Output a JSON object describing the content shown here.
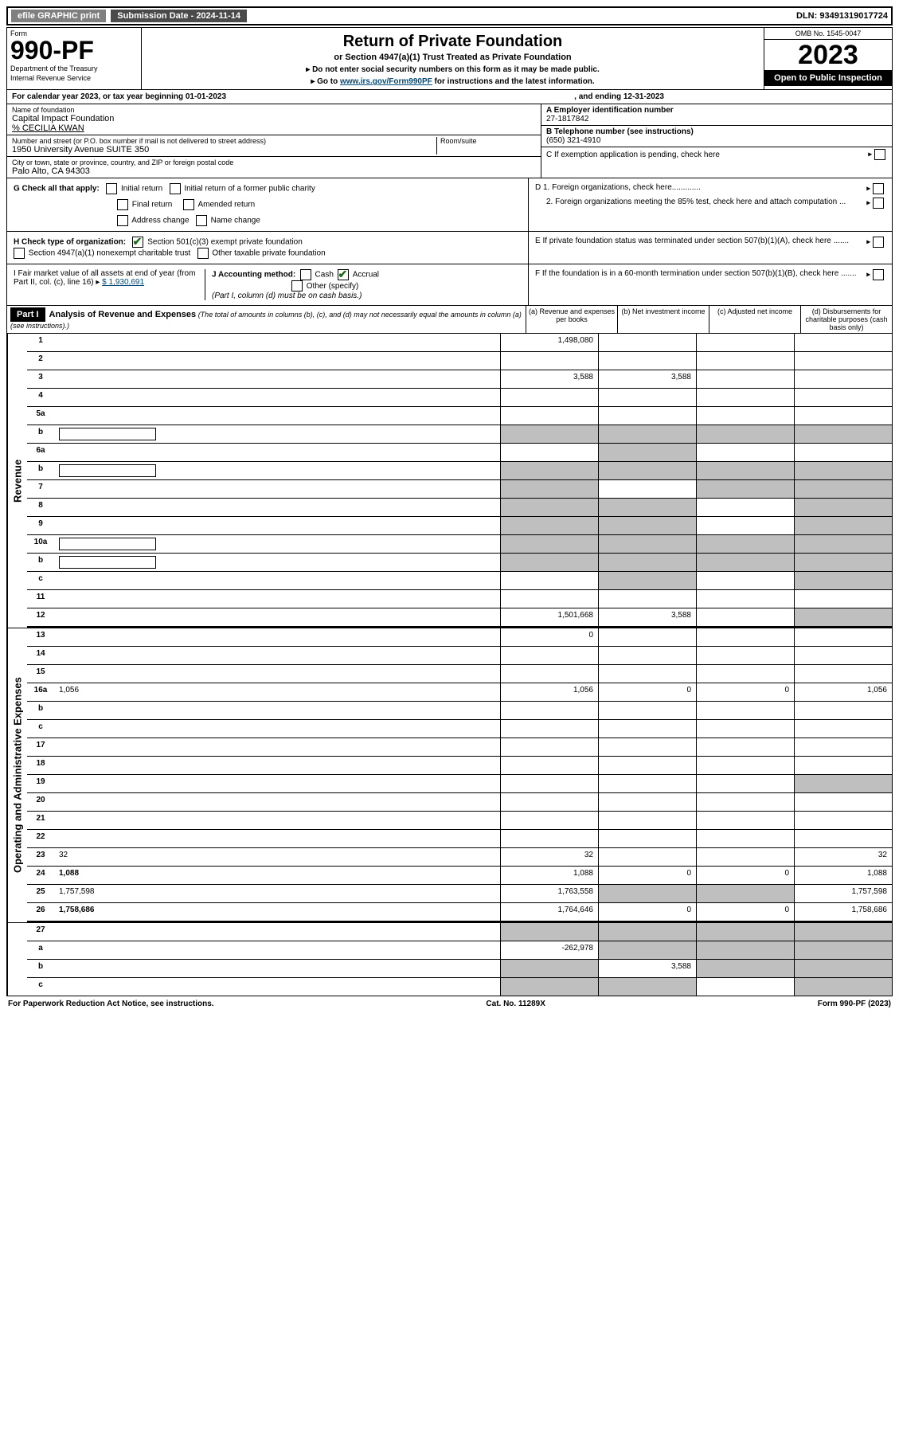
{
  "top_bar": {
    "efile": "efile GRAPHIC print",
    "submission": "Submission Date - 2024-11-14",
    "dln": "DLN: 93491319017724"
  },
  "header": {
    "form_label": "Form",
    "form_number": "990-PF",
    "dept1": "Department of the Treasury",
    "dept2": "Internal Revenue Service",
    "title": "Return of Private Foundation",
    "subtitle": "or Section 4947(a)(1) Trust Treated as Private Foundation",
    "note1": "▸ Do not enter social security numbers on this form as it may be made public.",
    "note2_a": "▸ Go to ",
    "note2_link": "www.irs.gov/Form990PF",
    "note2_b": " for instructions and the latest information.",
    "omb": "OMB No. 1545-0047",
    "year": "2023",
    "open": "Open to Public Inspection"
  },
  "calendar": {
    "text": "For calendar year 2023, or tax year beginning 01-01-2023",
    "ending": ", and ending 12-31-2023"
  },
  "id": {
    "name_label": "Name of foundation",
    "name": "Capital Impact Foundation",
    "care_of": "% CECILIA KWAN",
    "addr_label": "Number and street (or P.O. box number if mail is not delivered to street address)",
    "addr": "1950 University Avenue SUITE 350",
    "room_label": "Room/suite",
    "city_label": "City or town, state or province, country, and ZIP or foreign postal code",
    "city": "Palo Alto, CA  94303",
    "ein_label": "A Employer identification number",
    "ein": "27-1817842",
    "phone_label": "B Telephone number (see instructions)",
    "phone": "(650) 321-4910",
    "c_label": "C If exemption application is pending, check here"
  },
  "g_section": {
    "label": "G Check all that apply:",
    "opts": [
      "Initial return",
      "Initial return of a former public charity",
      "Final return",
      "Amended return",
      "Address change",
      "Name change"
    ]
  },
  "h_section": {
    "label": "H Check type of organization:",
    "opt1": "Section 501(c)(3) exempt private foundation",
    "opt2": "Section 4947(a)(1) nonexempt charitable trust",
    "opt3": "Other taxable private foundation"
  },
  "d_section": {
    "d1": "D 1. Foreign organizations, check here.............",
    "d2": "2. Foreign organizations meeting the 85% test, check here and attach computation ..."
  },
  "e_section": "E  If private foundation status was terminated under section 507(b)(1)(A), check here .......",
  "i_section": {
    "label": "I Fair market value of all assets at end of year (from Part II, col. (c), line 16) ▸",
    "value": "$  1,930,691"
  },
  "j_section": {
    "label": "J Accounting method:",
    "cash": "Cash",
    "accrual": "Accrual",
    "other": "Other (specify)",
    "note": "(Part I, column (d) must be on cash basis.)"
  },
  "f_section": "F  If the foundation is in a 60-month termination under section 507(b)(1)(B), check here .......",
  "part1": {
    "header": "Part I",
    "title": "Analysis of Revenue and Expenses",
    "note": "(The total of amounts in columns (b), (c), and (d) may not necessarily equal the amounts in column (a) (see instructions).)",
    "col_a": "(a)   Revenue and expenses per books",
    "col_b": "(b)   Net investment income",
    "col_c": "(c)   Adjusted net income",
    "col_d": "(d)   Disbursements for charitable purposes (cash basis only)"
  },
  "sides": {
    "revenue": "Revenue",
    "expenses": "Operating and Administrative Expenses"
  },
  "rows": [
    {
      "n": "1",
      "d": "",
      "a": "1,498,080",
      "b": "",
      "c": "",
      "cg": false,
      "dg": false
    },
    {
      "n": "2",
      "d": "",
      "a": "",
      "b": "",
      "c": "",
      "cg": false,
      "dg": false
    },
    {
      "n": "3",
      "d": "",
      "a": "3,588",
      "b": "3,588",
      "c": "",
      "cg": false,
      "dg": false
    },
    {
      "n": "4",
      "d": "",
      "a": "",
      "b": "",
      "c": "",
      "cg": false,
      "dg": false
    },
    {
      "n": "5a",
      "d": "",
      "a": "",
      "b": "",
      "c": "",
      "cg": false,
      "dg": false
    },
    {
      "n": "b",
      "d": "",
      "a": "",
      "b": "",
      "c": "",
      "ag": true,
      "bg": true,
      "cg": true,
      "dg": true,
      "boxed": true
    },
    {
      "n": "6a",
      "d": "",
      "a": "",
      "b": "",
      "c": "",
      "bg": true,
      "cg": false,
      "dg": false
    },
    {
      "n": "b",
      "d": "",
      "a": "",
      "b": "",
      "c": "",
      "ag": true,
      "bg": true,
      "cg": true,
      "dg": true,
      "boxed": true
    },
    {
      "n": "7",
      "d": "",
      "a": "",
      "b": "",
      "c": "",
      "ag": true,
      "cg": true,
      "dg": true
    },
    {
      "n": "8",
      "d": "",
      "a": "",
      "b": "",
      "c": "",
      "ag": true,
      "bg": true,
      "dg": true
    },
    {
      "n": "9",
      "d": "",
      "a": "",
      "b": "",
      "c": "",
      "ag": true,
      "bg": true,
      "dg": true
    },
    {
      "n": "10a",
      "d": "",
      "a": "",
      "b": "",
      "c": "",
      "ag": true,
      "bg": true,
      "cg": true,
      "dg": true,
      "boxed": true
    },
    {
      "n": "b",
      "d": "",
      "a": "",
      "b": "",
      "c": "",
      "ag": true,
      "bg": true,
      "cg": true,
      "dg": true,
      "boxed": true
    },
    {
      "n": "c",
      "d": "",
      "a": "",
      "b": "",
      "c": "",
      "bg": true,
      "dg": true
    },
    {
      "n": "11",
      "d": "",
      "a": "",
      "b": "",
      "c": "",
      "cg": false,
      "dg": false
    },
    {
      "n": "12",
      "d": "",
      "a": "1,501,668",
      "b": "3,588",
      "c": "",
      "bold": true,
      "dg": true,
      "section": true
    }
  ],
  "exp_rows": [
    {
      "n": "13",
      "d": "",
      "a": "0",
      "b": "",
      "c": ""
    },
    {
      "n": "14",
      "d": "",
      "a": "",
      "b": "",
      "c": ""
    },
    {
      "n": "15",
      "d": "",
      "a": "",
      "b": "",
      "c": ""
    },
    {
      "n": "16a",
      "d": "1,056",
      "a": "1,056",
      "b": "0",
      "c": "0"
    },
    {
      "n": "b",
      "d": "",
      "a": "",
      "b": "",
      "c": ""
    },
    {
      "n": "c",
      "d": "",
      "a": "",
      "b": "",
      "c": ""
    },
    {
      "n": "17",
      "d": "",
      "a": "",
      "b": "",
      "c": ""
    },
    {
      "n": "18",
      "d": "",
      "a": "",
      "b": "",
      "c": ""
    },
    {
      "n": "19",
      "d": "",
      "a": "",
      "b": "",
      "c": "",
      "dg": true
    },
    {
      "n": "20",
      "d": "",
      "a": "",
      "b": "",
      "c": ""
    },
    {
      "n": "21",
      "d": "",
      "a": "",
      "b": "",
      "c": ""
    },
    {
      "n": "22",
      "d": "",
      "a": "",
      "b": "",
      "c": ""
    },
    {
      "n": "23",
      "d": "32",
      "a": "32",
      "b": "",
      "c": ""
    },
    {
      "n": "24",
      "d": "1,088",
      "a": "1,088",
      "b": "0",
      "c": "0",
      "bold": true
    },
    {
      "n": "25",
      "d": "1,757,598",
      "a": "1,763,558",
      "b": "",
      "c": "",
      "bg": true,
      "cg": true
    },
    {
      "n": "26",
      "d": "1,758,686",
      "a": "1,764,646",
      "b": "0",
      "c": "0",
      "bold": true,
      "section": true
    }
  ],
  "sub_rows": [
    {
      "n": "27",
      "d": "",
      "a": "",
      "b": "",
      "c": "",
      "ag": true,
      "bg": true,
      "cg": true,
      "dg": true
    },
    {
      "n": "a",
      "d": "",
      "a": "-262,978",
      "b": "",
      "c": "",
      "bold": true,
      "bg": true,
      "cg": true,
      "dg": true
    },
    {
      "n": "b",
      "d": "",
      "a": "",
      "b": "3,588",
      "c": "",
      "bold": true,
      "ag": true,
      "cg": true,
      "dg": true
    },
    {
      "n": "c",
      "d": "",
      "a": "",
      "b": "",
      "c": "",
      "bold": true,
      "ag": true,
      "bg": true,
      "dg": true
    }
  ],
  "footer": {
    "left": "For Paperwork Reduction Act Notice, see instructions.",
    "center": "Cat. No. 11289X",
    "right": "Form 990-PF (2023)"
  }
}
